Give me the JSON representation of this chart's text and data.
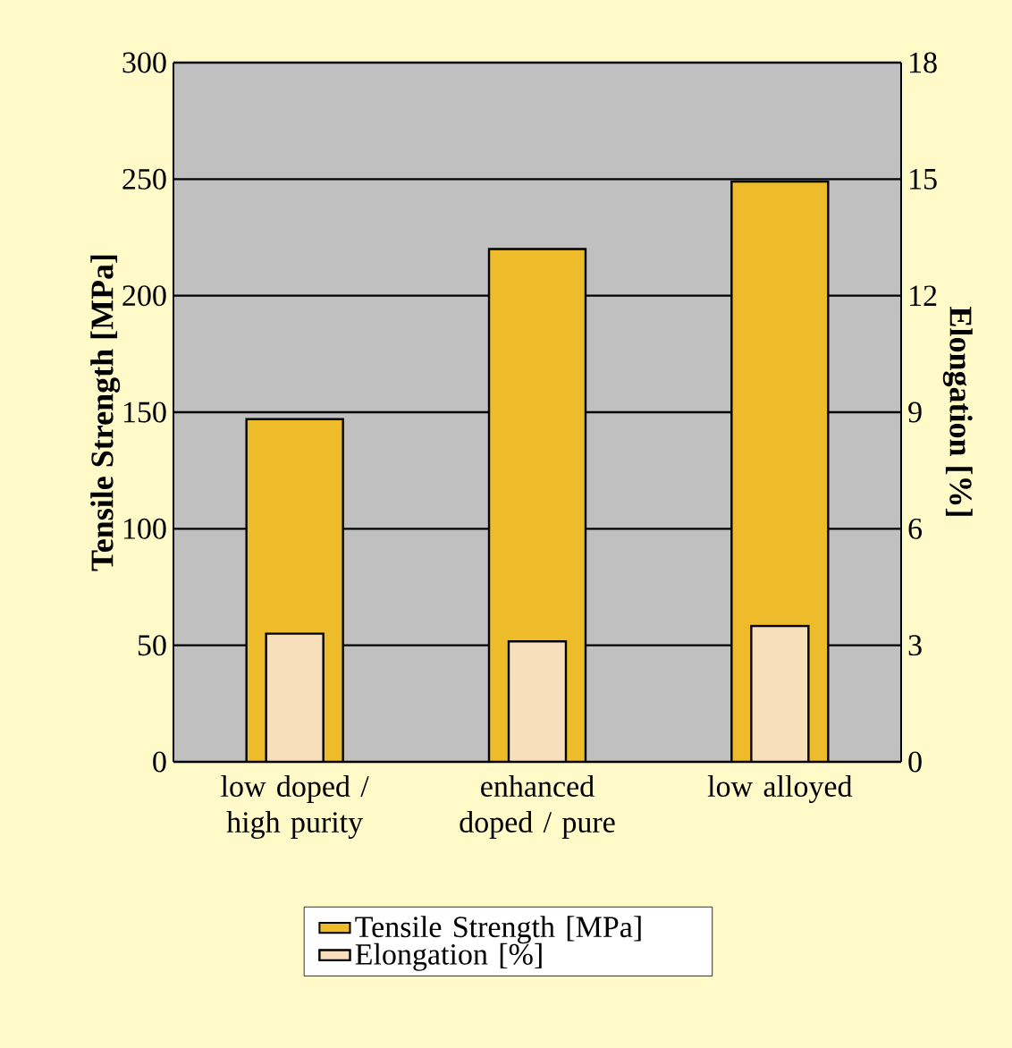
{
  "chart_data": {
    "type": "bar",
    "categories": [
      "low doped / high purity",
      "enhanced doped / pure",
      "low alloyed"
    ],
    "series": [
      {
        "name": "Tensile Strength [MPa]",
        "color": "#eebb2a",
        "values": [
          147,
          220,
          249
        ]
      },
      {
        "name": "Elongation [%]",
        "color": "#f8dfbb",
        "values": [
          3.3,
          3.1,
          3.5
        ],
        "axis": "y2"
      }
    ],
    "ylabel": "Tensile Strength [MPa]",
    "y2label": "Elongation [%]",
    "ylim": [
      0,
      300
    ],
    "yticks": [
      0,
      50,
      100,
      150,
      200,
      250,
      300
    ],
    "y2lim": [
      0,
      18
    ],
    "y2ticks": [
      0,
      3,
      6,
      9,
      12,
      15,
      18
    ],
    "grid": "y",
    "legend": "bottom"
  }
}
